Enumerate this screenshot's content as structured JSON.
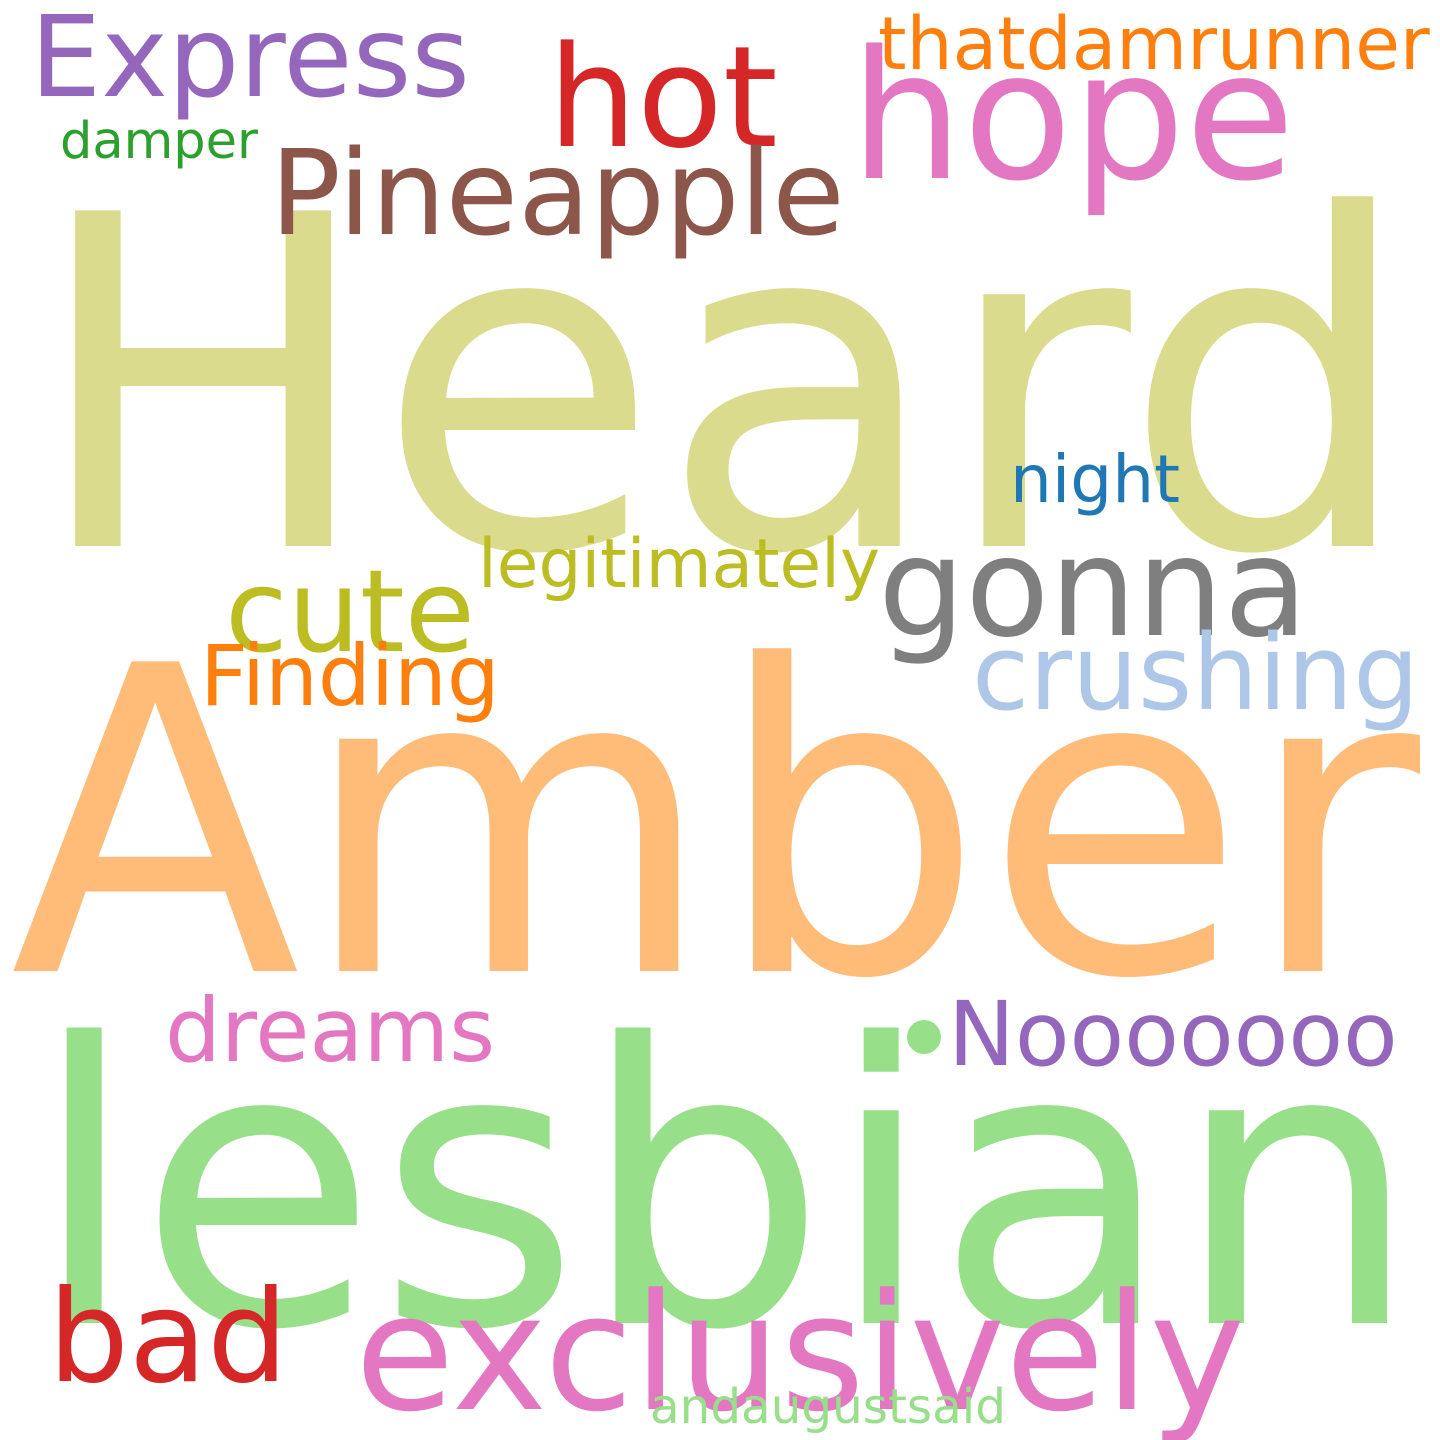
{
  "words": [
    {
      "text": "Heard",
      "color": "#dbdb8d"
    },
    {
      "text": "Amber",
      "color": "#ffbb78"
    },
    {
      "text": "lesbian",
      "color": "#98df8a"
    },
    {
      "text": "hope",
      "color": "#e377c2"
    },
    {
      "text": "hot",
      "color": "#d62728"
    },
    {
      "text": "Express",
      "color": "#9467bd"
    },
    {
      "text": "thatdamrunner",
      "color": "#ff7f0e"
    },
    {
      "text": "damper",
      "color": "#2ca02c"
    },
    {
      "text": "Pineapple",
      "color": "#8c564b"
    },
    {
      "text": "night",
      "color": "#1f77b4"
    },
    {
      "text": "gonna",
      "color": "#7f7f7f"
    },
    {
      "text": "legitimately",
      "color": "#bcbd22"
    },
    {
      "text": "cute",
      "color": "#bcbd22"
    },
    {
      "text": "Finding",
      "color": "#ff7f0e"
    },
    {
      "text": "crushing",
      "color": "#aec7e8"
    },
    {
      "text": "dreams",
      "color": "#e377c2"
    },
    {
      "text": "Nooooooo",
      "color": "#9467bd"
    },
    {
      "text": "bad",
      "color": "#d62728"
    },
    {
      "text": "exclusively",
      "color": "#e377c2"
    },
    {
      "text": "andaugustsaid",
      "color": "#98df8a"
    }
  ],
  "dot_color": "#98df8a"
}
